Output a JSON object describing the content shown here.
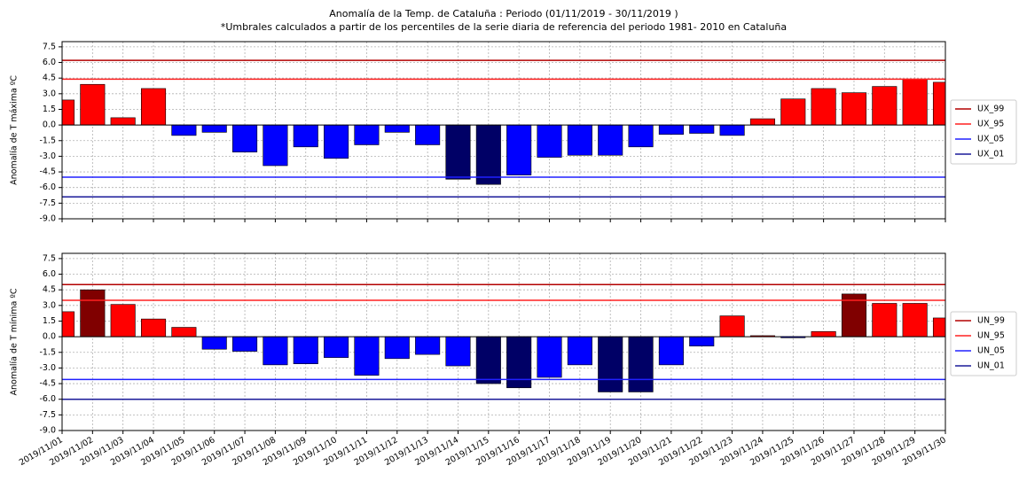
{
  "chart_data": [
    {
      "type": "bar",
      "title": "Anomalía de la Temp.  de Cataluña  : Periodo (01/11/2019 - 30/11/2019 )",
      "subtitle": "*Umbrales calculados a partir de los percentiles de la serie diaria  de referencia del periodo  1981- 2010 en Cataluña",
      "ylabel": "Anomalía de T máxima ºC",
      "values": [
        2.4,
        3.9,
        0.7,
        3.5,
        -1.0,
        -0.7,
        -2.6,
        -3.9,
        -2.1,
        -3.2,
        -1.9,
        -0.7,
        -1.9,
        -5.2,
        -5.7,
        -4.8,
        -3.1,
        -2.9,
        -2.9,
        -2.1,
        -0.9,
        -0.8,
        -1.0,
        0.6,
        2.5,
        3.5,
        3.1,
        3.7,
        4.4,
        4.1
      ],
      "colors": [
        "#ff0000",
        "#ff0000",
        "#ff0000",
        "#ff0000",
        "#0000ff",
        "#0000ff",
        "#0000ff",
        "#0000ff",
        "#0000ff",
        "#0000ff",
        "#0000ff",
        "#0000ff",
        "#0000ff",
        "#000066",
        "#000066",
        "#0000ff",
        "#0000ff",
        "#0000ff",
        "#0000ff",
        "#0000ff",
        "#0000ff",
        "#0000ff",
        "#0000ff",
        "#ff0000",
        "#ff0000",
        "#ff0000",
        "#ff0000",
        "#ff0000",
        "#ff0000",
        "#ff0000"
      ],
      "thresholds": [
        {
          "name": "UX_99",
          "color": "#b30000",
          "value": 6.2
        },
        {
          "name": "UX_95",
          "color": "#ff2020",
          "value": 4.4
        },
        {
          "name": "UX_05",
          "color": "#2020ff",
          "value": -5.0
        },
        {
          "name": "UX_01",
          "color": "#1a1a99",
          "value": -6.9
        }
      ],
      "ylim": [
        -9,
        8
      ],
      "yticks": [
        7.5,
        {
          "value": 6,
          "label": "6.0"
        },
        4.5,
        {
          "value": 3,
          "label": "3.0"
        },
        1.5,
        {
          "value": 0,
          "label": "0.0"
        },
        -1.5,
        {
          "value": -3,
          "label": "-3.0"
        },
        -4.5,
        {
          "value": -6,
          "label": "-6.0"
        },
        -7.5,
        {
          "value": -9,
          "label": "-9.0"
        }
      ],
      "grid": true,
      "legend": "right"
    },
    {
      "type": "bar",
      "ylabel": "Anomalía de T mínima ºC",
      "categories": [
        "2019/11/01",
        "2019/11/02",
        "2019/11/03",
        "2019/11/04",
        "2019/11/05",
        "2019/11/06",
        "2019/11/07",
        "2019/11/08",
        "2019/11/09",
        "2019/11/10",
        "2019/11/11",
        "2019/11/12",
        "2019/11/13",
        "2019/11/14",
        "2019/11/15",
        "2019/11/16",
        "2019/11/17",
        "2019/11/18",
        "2019/11/19",
        "2019/11/20",
        "2019/11/21",
        "2019/11/22",
        "2019/11/23",
        "2019/11/24",
        "2019/11/25",
        "2019/11/26",
        "2019/11/27",
        "2019/11/28",
        "2019/11/29",
        "2019/11/30"
      ],
      "values": [
        2.4,
        4.5,
        3.1,
        1.7,
        0.9,
        -1.2,
        -1.4,
        -2.7,
        -2.6,
        -2.0,
        -3.7,
        -2.1,
        -1.7,
        -2.8,
        -4.5,
        -4.9,
        -3.9,
        -2.7,
        -5.3,
        -5.3,
        -2.7,
        -0.9,
        2.0,
        0.1,
        -0.1,
        0.5,
        4.1,
        3.2,
        3.2,
        1.8
      ],
      "colors": [
        "#ff0000",
        "#800000",
        "#ff0000",
        "#ff0000",
        "#ff0000",
        "#0000ff",
        "#0000ff",
        "#0000ff",
        "#0000ff",
        "#0000ff",
        "#0000ff",
        "#0000ff",
        "#0000ff",
        "#0000ff",
        "#000066",
        "#000066",
        "#0000ff",
        "#0000ff",
        "#000066",
        "#000066",
        "#0000ff",
        "#0000ff",
        "#ff0000",
        "#ff0000",
        "#0000ff",
        "#ff0000",
        "#800000",
        "#ff0000",
        "#ff0000",
        "#ff0000"
      ],
      "thresholds": [
        {
          "name": "UN_99",
          "color": "#b30000",
          "value": 5.0
        },
        {
          "name": "UN_95",
          "color": "#ff2020",
          "value": 3.5
        },
        {
          "name": "UN_05",
          "color": "#2020ff",
          "value": -4.1
        },
        {
          "name": "UN_01",
          "color": "#1a1a99",
          "value": -6.0
        }
      ],
      "ylim": [
        -9,
        8
      ],
      "yticks": [
        7.5,
        {
          "value": 6,
          "label": "6.0"
        },
        4.5,
        {
          "value": 3,
          "label": "3.0"
        },
        1.5,
        {
          "value": 0,
          "label": "0.0"
        },
        -1.5,
        {
          "value": -3,
          "label": "-3.0"
        },
        -4.5,
        {
          "value": -6,
          "label": "-6.0"
        },
        -7.5,
        {
          "value": -9,
          "label": "-9.0"
        }
      ],
      "grid": true,
      "legend": "right"
    }
  ]
}
